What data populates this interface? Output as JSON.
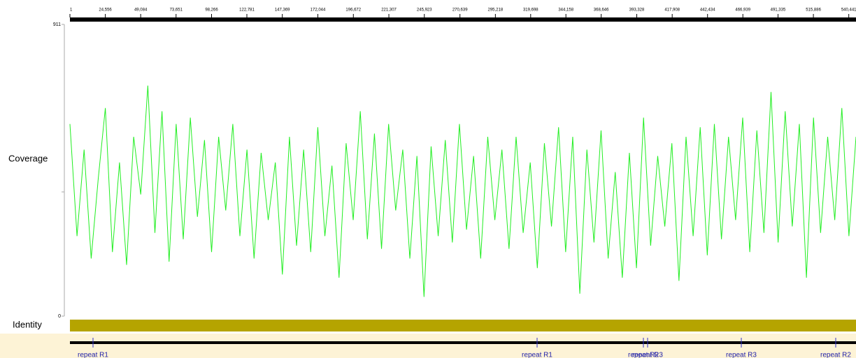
{
  "ruler": {
    "xlim": [
      1,
      545450
    ],
    "ticks": [
      1,
      {
        "value": 24556,
        "label": "24,556"
      },
      {
        "value": 49084,
        "label": "49,084"
      },
      {
        "value": 73651,
        "label": "73,651"
      },
      {
        "value": 98266,
        "label": "98,266"
      },
      {
        "value": 122781,
        "label": "122,781"
      },
      {
        "value": 147369,
        "label": "147,369"
      },
      {
        "value": 172044,
        "label": "172,044"
      },
      {
        "value": 196672,
        "label": "196,672"
      },
      {
        "value": 221307,
        "label": "221,307"
      },
      {
        "value": 245923,
        "label": "245,923"
      },
      {
        "value": 270639,
        "label": "270,639"
      },
      {
        "value": 295218,
        "label": "295,218"
      },
      {
        "value": 319698,
        "label": "319,698"
      },
      {
        "value": 344158,
        "label": "344,158"
      },
      {
        "value": 368646,
        "label": "368,646"
      },
      {
        "value": 393328,
        "label": "393,328"
      },
      {
        "value": 417908,
        "label": "417,908"
      },
      {
        "value": 442434,
        "label": "442,434"
      },
      {
        "value": 466939,
        "label": "466,939"
      },
      {
        "value": 491335,
        "label": "491,335"
      },
      {
        "value": 515886,
        "label": "515,886"
      },
      {
        "value": 540441,
        "label": "540,441"
      }
    ]
  },
  "coverage": {
    "label": "Coverage",
    "color": "#22ee22",
    "ylim": [
      0,
      911
    ],
    "yticks": [
      0,
      911
    ],
    "values": [
      600,
      250,
      520,
      180,
      430,
      650,
      200,
      480,
      160,
      560,
      380,
      720,
      260,
      640,
      170,
      600,
      240,
      620,
      310,
      550,
      200,
      560,
      330,
      600,
      250,
      520,
      180,
      510,
      300,
      480,
      130,
      560,
      220,
      520,
      200,
      590,
      250,
      470,
      120,
      540,
      300,
      640,
      240,
      570,
      210,
      600,
      330,
      520,
      180,
      500,
      60,
      530,
      250,
      550,
      230,
      600,
      270,
      500,
      180,
      560,
      300,
      520,
      210,
      560,
      260,
      480,
      150,
      540,
      280,
      590,
      200,
      560,
      70,
      520,
      230,
      580,
      180,
      450,
      120,
      510,
      150,
      620,
      220,
      500,
      280,
      540,
      110,
      560,
      250,
      590,
      190,
      600,
      240,
      560,
      300,
      620,
      200,
      580,
      260,
      700,
      230,
      640,
      280,
      600,
      120,
      620,
      260,
      560,
      300,
      650,
      250,
      560
    ]
  },
  "identity": {
    "label": "Identity",
    "color": "#b5a400"
  },
  "annotations": [
    {
      "label": "repeat R1",
      "position": 16014
    },
    {
      "label": "repeat R1",
      "position": 324170
    },
    {
      "label": "repeat R2",
      "position": 397930
    },
    {
      "label": "repeat R3",
      "position": 400840
    },
    {
      "label": "repeat R3",
      "position": 465870
    },
    {
      "label": "repeat R2",
      "position": 531380
    }
  ]
}
